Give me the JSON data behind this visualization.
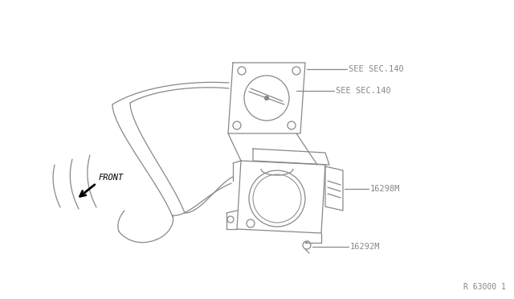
{
  "bg_color": "#ffffff",
  "line_color": "#888888",
  "text_color": "#888888",
  "title_ref": "R 63000 1",
  "label1": "SEE SEC.140",
  "label2": "SEE SEC.140",
  "label3": "16298M",
  "label4": "16292M",
  "front_label": "FRONT",
  "figsize": [
    6.4,
    3.72
  ],
  "dpi": 100
}
